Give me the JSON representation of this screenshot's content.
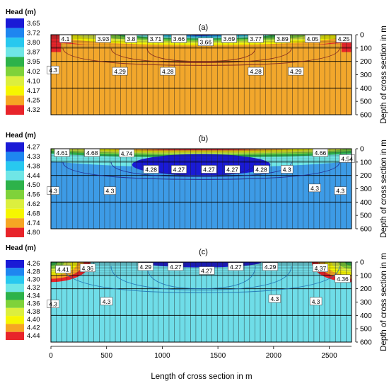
{
  "x_axis": {
    "title": "Length of cross section in m",
    "ticks": [
      0,
      500,
      1000,
      1500,
      2000,
      2500
    ],
    "range": [
      0,
      2700
    ]
  },
  "y_axis": {
    "title": "Depth of cross section in m",
    "ticks": [
      0,
      100,
      200,
      300,
      400,
      500,
      600
    ],
    "range": [
      0,
      600
    ]
  },
  "panels": [
    {
      "tag": "(a)",
      "legend_title": "Head (m)",
      "legend": [
        {
          "label": "3.65",
          "color": "#1a1ad6"
        },
        {
          "label": "3.72",
          "color": "#1e86f0"
        },
        {
          "label": "3.80",
          "color": "#28c8ef"
        },
        {
          "label": "3.87",
          "color": "#6fe6e6"
        },
        {
          "label": "3.95",
          "color": "#2db24a"
        },
        {
          "label": "4.02",
          "color": "#7fd23a"
        },
        {
          "label": "4.10",
          "color": "#dcef3e"
        },
        {
          "label": "4.17",
          "color": "#f6f600"
        },
        {
          "label": "4.25",
          "color": "#f6a623"
        },
        {
          "label": "4.32",
          "color": "#e8242a"
        }
      ],
      "background": "#f2a72c",
      "contour_labels": [
        {
          "x": 130,
          "depth": 5,
          "text": "4.1"
        },
        {
          "x": 470,
          "depth": 5,
          "text": "3.93"
        },
        {
          "x": 720,
          "depth": 5,
          "text": "3.8"
        },
        {
          "x": 940,
          "depth": 5,
          "text": "3.71"
        },
        {
          "x": 1150,
          "depth": 5,
          "text": "3.66"
        },
        {
          "x": 1390,
          "depth": 30,
          "text": "3.66"
        },
        {
          "x": 1600,
          "depth": 5,
          "text": "3.69"
        },
        {
          "x": 1840,
          "depth": 5,
          "text": "3.77"
        },
        {
          "x": 2080,
          "depth": 5,
          "text": "3.89"
        },
        {
          "x": 2350,
          "depth": 5,
          "text": "4.05"
        },
        {
          "x": 2630,
          "depth": 5,
          "text": "4.25"
        },
        {
          "x": 20,
          "depth": 240,
          "text": "4.3"
        },
        {
          "x": 620,
          "depth": 250,
          "text": "4.29"
        },
        {
          "x": 1050,
          "depth": 250,
          "text": "4.28"
        },
        {
          "x": 1840,
          "depth": 250,
          "text": "4.28"
        },
        {
          "x": 2200,
          "depth": 250,
          "text": "4.29"
        }
      ]
    },
    {
      "tag": "(b)",
      "legend_title": "Head (m)",
      "legend": [
        {
          "label": "4.27",
          "color": "#1a1ad6"
        },
        {
          "label": "4.33",
          "color": "#1e86f0"
        },
        {
          "label": "4.38",
          "color": "#28c8ef"
        },
        {
          "label": "4.44",
          "color": "#6fe6e6"
        },
        {
          "label": "4.50",
          "color": "#2db24a"
        },
        {
          "label": "4.56",
          "color": "#7fd23a"
        },
        {
          "label": "4.62",
          "color": "#dcef3e"
        },
        {
          "label": "4.68",
          "color": "#f6f600"
        },
        {
          "label": "4.74",
          "color": "#f6a623"
        },
        {
          "label": "4.80",
          "color": "#e8242a"
        }
      ],
      "background": "#3d9be6",
      "contour_labels": [
        {
          "x": 100,
          "depth": 5,
          "text": "4.61"
        },
        {
          "x": 370,
          "depth": 5,
          "text": "4.68"
        },
        {
          "x": 680,
          "depth": 10,
          "text": "4.74"
        },
        {
          "x": 2420,
          "depth": 5,
          "text": "4.66"
        },
        {
          "x": 2660,
          "depth": 50,
          "text": "4.54"
        },
        {
          "x": 900,
          "depth": 130,
          "text": "4.28"
        },
        {
          "x": 1150,
          "depth": 130,
          "text": "4.27"
        },
        {
          "x": 1420,
          "depth": 130,
          "text": "4.27"
        },
        {
          "x": 1630,
          "depth": 130,
          "text": "4.27"
        },
        {
          "x": 1890,
          "depth": 130,
          "text": "4.28"
        },
        {
          "x": 2120,
          "depth": 130,
          "text": "4.3"
        },
        {
          "x": 20,
          "depth": 290,
          "text": "4.3"
        },
        {
          "x": 530,
          "depth": 290,
          "text": "4.3"
        },
        {
          "x": 2370,
          "depth": 270,
          "text": "4.3"
        },
        {
          "x": 2600,
          "depth": 290,
          "text": "4.3"
        }
      ]
    },
    {
      "tag": "(c)",
      "legend_title": "Head (m)",
      "legend": [
        {
          "label": "4.26",
          "color": "#1a1ad6"
        },
        {
          "label": "4.28",
          "color": "#1e86f0"
        },
        {
          "label": "4.30",
          "color": "#28c8ef"
        },
        {
          "label": "4.32",
          "color": "#6fe6e6"
        },
        {
          "label": "4.34",
          "color": "#2db24a"
        },
        {
          "label": "4.36",
          "color": "#7fd23a"
        },
        {
          "label": "4.38",
          "color": "#dcef3e"
        },
        {
          "label": "4.40",
          "color": "#f6f600"
        },
        {
          "label": "4.42",
          "color": "#f6a623"
        },
        {
          "label": "4.44",
          "color": "#e8242a"
        }
      ],
      "background": "#6fdde8",
      "contour_labels": [
        {
          "x": 110,
          "depth": 30,
          "text": "4.41"
        },
        {
          "x": 330,
          "depth": 20,
          "text": "4.36"
        },
        {
          "x": 850,
          "depth": 10,
          "text": "4.29"
        },
        {
          "x": 1120,
          "depth": 10,
          "text": "4.27"
        },
        {
          "x": 1400,
          "depth": 40,
          "text": "4.27"
        },
        {
          "x": 1660,
          "depth": 10,
          "text": "4.27"
        },
        {
          "x": 1970,
          "depth": 10,
          "text": "4.29"
        },
        {
          "x": 2420,
          "depth": 20,
          "text": "4.37"
        },
        {
          "x": 2620,
          "depth": 100,
          "text": "4.36"
        },
        {
          "x": 20,
          "depth": 290,
          "text": "4.3"
        },
        {
          "x": 500,
          "depth": 270,
          "text": "4.3"
        },
        {
          "x": 2010,
          "depth": 250,
          "text": "4.3"
        },
        {
          "x": 2380,
          "depth": 270,
          "text": "4.3"
        }
      ]
    }
  ]
}
